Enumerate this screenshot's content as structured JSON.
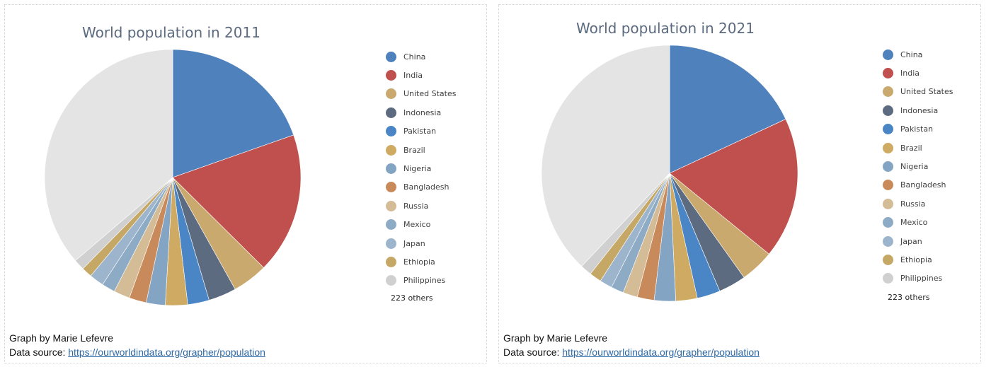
{
  "chart_data": [
    {
      "type": "pie",
      "title": "World population in 2011",
      "series": [
        {
          "values": [
            1373,
            1248,
            312,
            246,
            190,
            196,
            168,
            152,
            143,
            118,
            128,
            92,
            96
          ]
        }
      ],
      "categories": [
        "China",
        "India",
        "United States",
        "Indonesia",
        "Pakistan",
        "Brazil",
        "Nigeria",
        "Bangladesh",
        "Russia",
        "Mexico",
        "Japan",
        "Ethiopia",
        "Philippines"
      ],
      "others_label": "223 others",
      "total": 7000,
      "legend_position": "right",
      "colors": [
        "#4f81bd",
        "#c0504d",
        "#c9a96e",
        "#5d6b80",
        "#4a86c5",
        "#cfaa62",
        "#84a4c4",
        "#c98a5b",
        "#d3bc96",
        "#8eabc6",
        "#9cb5cc",
        "#c6a866",
        "#d0d0d0"
      ],
      "caption_line1": "Graph by Marie Lefevre",
      "caption_prefix": "Data source: ",
      "caption_link": "https://ourworldindata.org/grapher/population"
    },
    {
      "type": "pie",
      "title": "World population in 2021",
      "series": [
        {
          "values": [
            1426,
            1408,
            337,
            274,
            231,
            214,
            213,
            169,
            145,
            126,
            125,
            120,
            114
          ]
        }
      ],
      "categories": [
        "China",
        "India",
        "United States",
        "Indonesia",
        "Pakistan",
        "Brazil",
        "Nigeria",
        "Bangladesh",
        "Russia",
        "Mexico",
        "Japan",
        "Ethiopia",
        "Philippines"
      ],
      "others_label": "223 others",
      "total": 7900,
      "legend_position": "right",
      "colors": [
        "#4f81bd",
        "#c0504d",
        "#c9a96e",
        "#5d6b80",
        "#4a86c5",
        "#cfaa62",
        "#84a4c4",
        "#c98a5b",
        "#d3bc96",
        "#8eabc6",
        "#9cb5cc",
        "#c6a866",
        "#d0d0d0"
      ],
      "caption_line1": "Graph by Marie Lefevre",
      "caption_prefix": "Data source: ",
      "caption_link": "https://ourworldindata.org/grapher/population"
    }
  ]
}
